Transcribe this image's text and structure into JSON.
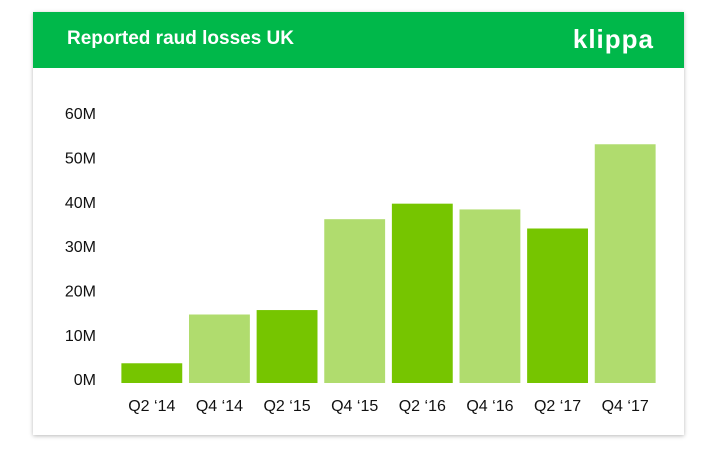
{
  "chart_data": {
    "type": "bar",
    "title": "Reported raud losses UK",
    "logo": "klippa",
    "categories": [
      "Q2 ‘14",
      "Q4 ‘14",
      "Q2 ‘15",
      "Q4 ‘15",
      "Q2 ‘16",
      "Q4 ‘16",
      "Q2 ‘17",
      "Q4 ‘17"
    ],
    "values": [
      4000000,
      15000000,
      16000000,
      36500000,
      40000000,
      38700000,
      34400000,
      53400000
    ],
    "colors": [
      "#76c500",
      "#b0dc6e",
      "#76c500",
      "#b0dc6e",
      "#76c500",
      "#b0dc6e",
      "#76c500",
      "#b0dc6e"
    ],
    "ylim": [
      0,
      60000000
    ],
    "yticks": [
      {
        "value": 0,
        "label": "0M"
      },
      {
        "value": 10000000,
        "label": "10M"
      },
      {
        "value": 20000000,
        "label": "20M"
      },
      {
        "value": 30000000,
        "label": "30M"
      },
      {
        "value": 40000000,
        "label": "40M"
      },
      {
        "value": 50000000,
        "label": "50M"
      },
      {
        "value": 60000000,
        "label": "60M"
      }
    ],
    "grid": false
  }
}
